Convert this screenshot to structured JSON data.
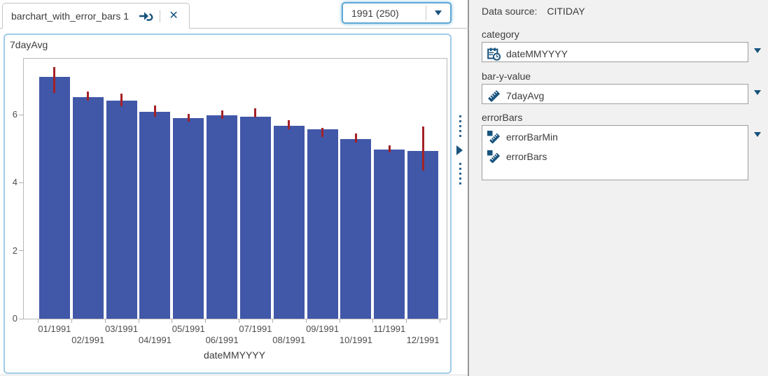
{
  "tab": {
    "label": "barchart_with_error_bars 1"
  },
  "toolbar": {
    "filter_value": "1991 (250)"
  },
  "data_panel": {
    "data_source_label": "Data source:",
    "data_source_value": "CITIDAY",
    "roles": [
      {
        "label": "category",
        "items": [
          {
            "name": "dateMMYYYY",
            "icon": "datetime-icon"
          }
        ]
      },
      {
        "label": "bar-y-value",
        "items": [
          {
            "name": "7dayAvg",
            "icon": "measure-icon"
          }
        ]
      },
      {
        "label": "errorBars",
        "items": [
          {
            "name": "errorBarMin",
            "icon": "measure-icon"
          },
          {
            "name": "errorBars",
            "icon": "measure-icon"
          }
        ]
      }
    ]
  },
  "icons": {
    "assign_data": "arrow-with-question-hook",
    "close": "✕",
    "dropdown_arrow": "▼",
    "splitter_arrow": "▶",
    "datetime": "calendar-clock",
    "measure": "diagonal-ruler"
  },
  "colors": {
    "bar": "#4157a8",
    "error_bar": "#a32126",
    "icon_navy": "#17537d",
    "chart_panel_border": "#a0cbe8",
    "focus_border": "#5fa8d5",
    "panel_bg": "#f1f1f1",
    "divider": "#979797"
  },
  "chart_data": {
    "type": "bar",
    "title": "",
    "ylabel": "7dayAvg",
    "xlabel": "dateMMYYYY",
    "categories": [
      "01/1991",
      "02/1991",
      "03/1991",
      "04/1991",
      "05/1991",
      "06/1991",
      "07/1991",
      "08/1991",
      "09/1991",
      "10/1991",
      "11/1991",
      "12/1991"
    ],
    "values": [
      7.12,
      6.52,
      6.42,
      6.08,
      5.9,
      5.98,
      5.94,
      5.68,
      5.58,
      5.28,
      4.97,
      4.93
    ],
    "error_bars": [
      [
        6.65,
        7.4
      ],
      [
        6.42,
        6.68
      ],
      [
        6.25,
        6.62
      ],
      [
        5.95,
        6.28
      ],
      [
        5.8,
        6.02
      ],
      [
        5.88,
        6.12
      ],
      [
        5.92,
        6.2
      ],
      [
        5.58,
        5.85
      ],
      [
        5.35,
        5.62
      ],
      [
        5.18,
        5.45
      ],
      [
        4.9,
        5.1
      ],
      [
        4.35,
        5.65
      ]
    ],
    "yticks": [
      0,
      2,
      4,
      6
    ],
    "ylim": [
      0,
      7.65
    ],
    "grid": false,
    "legend": false,
    "bar_color": "#4157a8",
    "error_color": "#a32126"
  }
}
